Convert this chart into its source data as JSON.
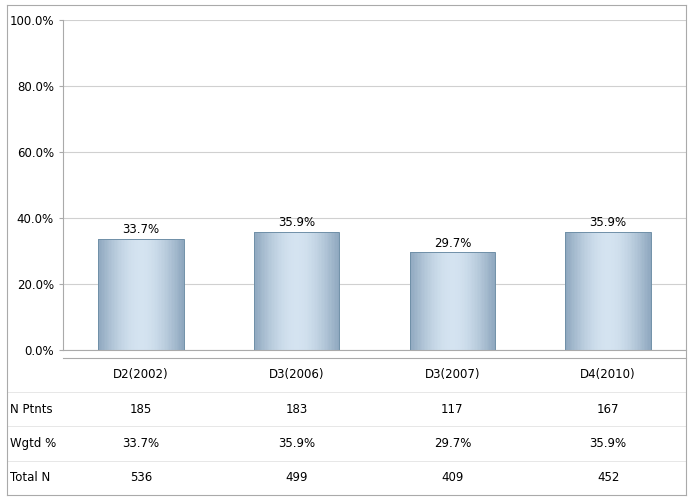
{
  "categories": [
    "D2(2002)",
    "D3(2006)",
    "D3(2007)",
    "D4(2010)"
  ],
  "values": [
    33.7,
    35.9,
    29.7,
    35.9
  ],
  "bar_labels": [
    "33.7%",
    "35.9%",
    "29.7%",
    "35.9%"
  ],
  "ylim": [
    0,
    100
  ],
  "yticks": [
    0,
    20,
    40,
    60,
    80,
    100
  ],
  "ytick_labels": [
    "0.0%",
    "20.0%",
    "40.0%",
    "60.0%",
    "80.0%",
    "100.0%"
  ],
  "table_row_labels": [
    "",
    "N Ptnts",
    "Wgtd %",
    "Total N"
  ],
  "table_data": [
    [
      "D2(2002)",
      "D3(2006)",
      "D3(2007)",
      "D4(2010)"
    ],
    [
      "185",
      "183",
      "117",
      "167"
    ],
    [
      "33.7%",
      "35.9%",
      "29.7%",
      "35.9%"
    ],
    [
      "536",
      "499",
      "409",
      "452"
    ]
  ],
  "bar_color_dark": "#8fa8bf",
  "bar_color_light": "#d4e3f0",
  "bar_edge_color": "#7090a8",
  "background_color": "#ffffff",
  "grid_color": "#d0d0d0",
  "label_fontsize": 8.5,
  "tick_fontsize": 8.5,
  "table_fontsize": 8.5,
  "bar_width": 0.55
}
